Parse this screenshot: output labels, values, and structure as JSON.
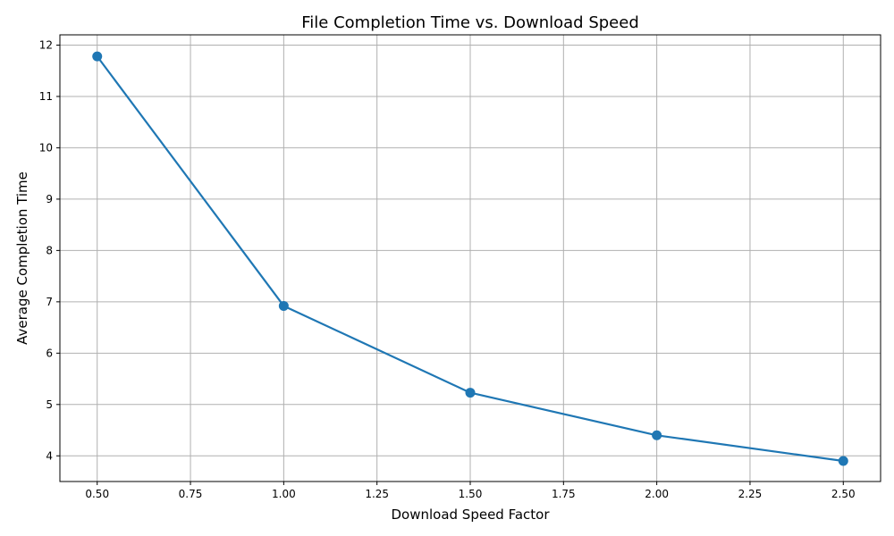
{
  "chart_data": {
    "type": "line",
    "title": "File Completion Time vs. Download Speed",
    "xlabel": "Download Speed Factor",
    "ylabel": "Average Completion Time",
    "x": [
      0.5,
      1.0,
      1.5,
      2.0,
      2.5
    ],
    "series": [
      {
        "values": [
          11.78,
          6.92,
          5.23,
          4.4,
          3.9
        ],
        "color": "#1f77b4"
      }
    ],
    "xlim": [
      0.4,
      2.6
    ],
    "ylim": [
      3.5,
      12.2
    ],
    "x_ticks": [
      "0.50",
      "0.75",
      "1.00",
      "1.25",
      "1.50",
      "1.75",
      "2.00",
      "2.25",
      "2.50"
    ],
    "y_ticks": [
      "4",
      "5",
      "6",
      "7",
      "8",
      "9",
      "10",
      "11",
      "12"
    ],
    "grid": true,
    "marker": "circle"
  }
}
